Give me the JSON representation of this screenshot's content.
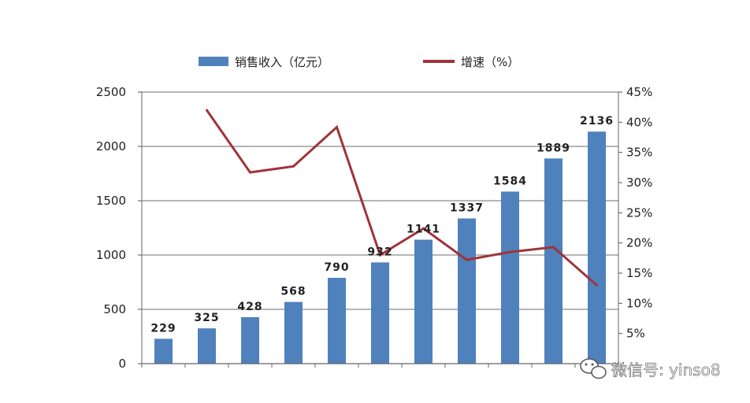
{
  "chart_data": {
    "type": "bar",
    "title": "",
    "categories": [
      "",
      "",
      "",
      "",
      "",
      "",
      "",
      "",
      "",
      "",
      ""
    ],
    "series": [
      {
        "name": "销售收入（亿元）",
        "kind": "bar",
        "axis": "left",
        "color": "#4F81BD",
        "values": [
          229,
          325,
          428,
          568,
          790,
          932,
          1141,
          1337,
          1584,
          1889,
          2136
        ]
      },
      {
        "name": "增速（%）",
        "kind": "line",
        "axis": "right",
        "color": "#A0333A",
        "values": [
          null,
          42,
          31.7,
          32.7,
          39.2,
          18,
          22.4,
          17.2,
          18.5,
          19.3,
          13
        ]
      }
    ],
    "data_labels": [
      "229",
      "325",
      "428",
      "568",
      "790",
      "932",
      "1141",
      "1337",
      "1584",
      "1889",
      "2136"
    ],
    "y_left": {
      "ylim": [
        0,
        2500
      ],
      "ticks": [
        "0",
        "500",
        "1000",
        "1500",
        "2000",
        "2500"
      ]
    },
    "y_right": {
      "ylim": [
        0,
        45
      ],
      "ticks": [
        "5%",
        "10%",
        "15%",
        "20%",
        "25%",
        "30%",
        "35%",
        "40%",
        "45%"
      ]
    },
    "grid": true,
    "legend_position": "top"
  },
  "watermark": {
    "text": "微信号: yinso8",
    "icon": "wechat-icon"
  }
}
